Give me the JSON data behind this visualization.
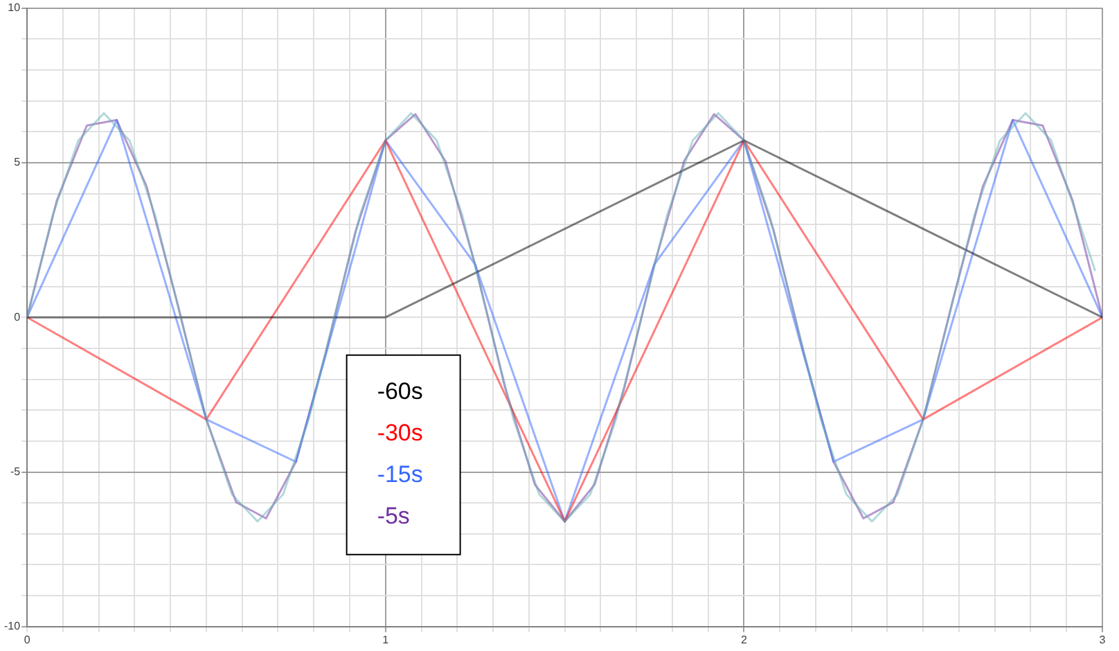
{
  "chart_data": {
    "type": "line",
    "xlim": [
      0,
      3
    ],
    "ylim": [
      -10,
      10
    ],
    "xticks": [
      0,
      {
        "value": 0.1,
        "label": null
      },
      {
        "value": 0.2,
        "label": null
      },
      {
        "value": 0.3,
        "label": null
      },
      {
        "value": 0.4,
        "label": null
      },
      {
        "value": 0.5,
        "label": null
      },
      {
        "value": 0.6,
        "label": null
      },
      {
        "value": 0.7,
        "label": null
      },
      {
        "value": 0.8,
        "label": null
      },
      {
        "value": 0.9,
        "label": null
      },
      1,
      {
        "value": 1.1,
        "label": null
      },
      {
        "value": 1.2,
        "label": null
      },
      {
        "value": 1.3,
        "label": null
      },
      {
        "value": 1.4,
        "label": null
      },
      {
        "value": 1.5,
        "label": null
      },
      {
        "value": 1.6,
        "label": null
      },
      {
        "value": 1.7,
        "label": null
      },
      {
        "value": 1.8,
        "label": null
      },
      {
        "value": 1.9,
        "label": null
      },
      2,
      {
        "value": 2.1,
        "label": null
      },
      {
        "value": 2.2,
        "label": null
      },
      {
        "value": 2.3,
        "label": null
      },
      {
        "value": 2.4,
        "label": null
      },
      {
        "value": 2.5,
        "label": null
      },
      {
        "value": 2.6,
        "label": null
      },
      {
        "value": 2.7,
        "label": null
      },
      {
        "value": 2.8,
        "label": null
      },
      {
        "value": 2.9,
        "label": null
      },
      3
    ],
    "yticks": [
      -10,
      {
        "value": -9,
        "label": null
      },
      {
        "value": -8,
        "label": null
      },
      {
        "value": -7,
        "label": null
      },
      {
        "value": -6,
        "label": null
      },
      -5,
      {
        "value": -4,
        "label": null
      },
      {
        "value": -3,
        "label": null
      },
      {
        "value": -2,
        "label": null
      },
      {
        "value": -1,
        "label": null
      },
      0,
      {
        "value": 1,
        "label": null
      },
      {
        "value": 2,
        "label": null
      },
      {
        "value": 3,
        "label": null
      },
      {
        "value": 4,
        "label": null
      },
      5,
      {
        "value": 6,
        "label": null
      },
      {
        "value": 7,
        "label": null
      },
      {
        "value": 8,
        "label": null
      },
      {
        "value": 9,
        "label": null
      },
      10
    ],
    "grid": true,
    "legend": "bottom",
    "marker": "none",
    "line_style": "solid",
    "series": [
      {
        "color": "#66b3b3",
        "x": [
          0,
          0.0714,
          0.1429,
          0.2143,
          0.2857,
          0.3571,
          0.4286,
          0.5,
          0.5714,
          0.6429,
          0.7143,
          0.7857,
          0.8571,
          0.9286,
          1,
          1.0714,
          1.1429,
          1.2143,
          1.2857,
          1.3571,
          1.4286,
          1.5,
          1.5714,
          1.6429,
          1.7143,
          1.7857,
          1.8571,
          1.9286,
          2,
          2.0714,
          2.1429,
          2.2143,
          2.2857,
          2.3571,
          2.4286,
          2.5,
          2.5714,
          2.6429,
          2.7143,
          2.7857,
          2.8571,
          2.9286,
          2.98
        ],
        "values": [
          0,
          3.3,
          5.72,
          6.6,
          5.72,
          3.3,
          0,
          -3.3,
          -5.72,
          -6.6,
          -5.72,
          -3.3,
          0,
          3.3,
          5.72,
          6.6,
          5.72,
          3.3,
          0,
          -3.3,
          -5.72,
          -6.6,
          -5.72,
          -3.3,
          0,
          3.3,
          5.72,
          6.6,
          5.72,
          3.3,
          0,
          -3.3,
          -5.72,
          -6.6,
          -5.72,
          -3.3,
          0,
          3.3,
          5.72,
          6.6,
          5.72,
          3.3,
          1.5
        ]
      },
      {
        "name": "-60s",
        "color": "#000000",
        "x": [
          0,
          1,
          2,
          3
        ],
        "values": [
          0,
          0,
          5.72,
          0
        ]
      },
      {
        "name": "-30s",
        "color": "#ff0000",
        "x": [
          0,
          0.5,
          1,
          1.5,
          2,
          2.5,
          3
        ],
        "values": [
          0,
          -3.3,
          5.72,
          -6.6,
          5.72,
          -3.3,
          0
        ]
      },
      {
        "name": "-15s",
        "color": "#3366ff",
        "x": [
          0,
          0.25,
          0.5,
          0.75,
          1,
          1.25,
          1.5,
          1.75,
          2,
          2.25,
          2.5,
          2.75,
          3
        ],
        "values": [
          0,
          6.38,
          -3.3,
          -4.67,
          5.72,
          1.71,
          -6.6,
          1.71,
          5.72,
          -4.67,
          -3.3,
          6.38,
          0
        ]
      },
      {
        "name": "-5s",
        "color": "#7030a0",
        "x": [
          0,
          0.0833,
          0.1667,
          0.25,
          0.3333,
          0.4167,
          0.5,
          0.5833,
          0.6667,
          0.75,
          0.8333,
          0.9167,
          1,
          1.0833,
          1.1667,
          1.25,
          1.3333,
          1.4167,
          1.5,
          1.5833,
          1.6667,
          1.75,
          1.8333,
          1.9167,
          2,
          2.0833,
          2.1667,
          2.25,
          2.3333,
          2.4167,
          2.5,
          2.5833,
          2.6667,
          2.75,
          2.8333,
          2.9167,
          3
        ],
        "values": [
          0,
          3.79,
          6.2,
          6.38,
          4.24,
          0.58,
          -3.3,
          -5.98,
          -6.5,
          -4.67,
          -1.15,
          2.79,
          5.72,
          6.57,
          5.06,
          1.71,
          -2.26,
          -5.41,
          -6.6,
          -5.41,
          -2.26,
          1.71,
          5.06,
          6.57,
          5.72,
          2.79,
          -1.15,
          -4.67,
          -6.5,
          -5.98,
          -3.3,
          0.58,
          4.24,
          6.38,
          6.2,
          3.79,
          0
        ]
      }
    ]
  }
}
